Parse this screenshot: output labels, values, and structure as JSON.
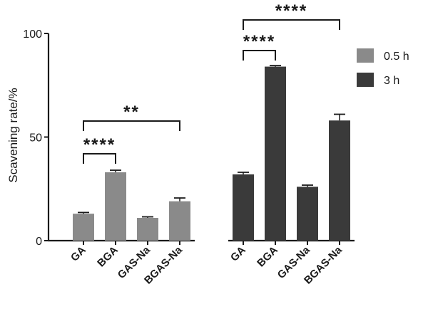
{
  "chart_data": {
    "type": "bar",
    "ylabel": "Scavening rate/%",
    "xlabel": "",
    "ylim": [
      0,
      100
    ],
    "yticks": [
      0,
      50,
      100
    ],
    "categories": [
      "GA",
      "BGA",
      "GAS-Na",
      "BGAS-Na"
    ],
    "series": [
      {
        "name": "0.5 h",
        "color": "#8a8a8a",
        "values": [
          13,
          33,
          11,
          19
        ],
        "errors": [
          0.6,
          1.0,
          0.5,
          1.6
        ]
      },
      {
        "name": "3 h",
        "color": "#3a3a3a",
        "values": [
          32,
          84,
          26,
          58
        ],
        "errors": [
          1.0,
          0.5,
          0.8,
          3.0
        ]
      }
    ],
    "legend_position": "top-right",
    "annotations": [
      {
        "series": 0,
        "from": 0,
        "to": 1,
        "label": "****"
      },
      {
        "series": 0,
        "from": 0,
        "to": 3,
        "label": "**"
      },
      {
        "series": 1,
        "from": 0,
        "to": 1,
        "label": "****"
      },
      {
        "series": 1,
        "from": 0,
        "to": 3,
        "label": "****"
      }
    ]
  }
}
